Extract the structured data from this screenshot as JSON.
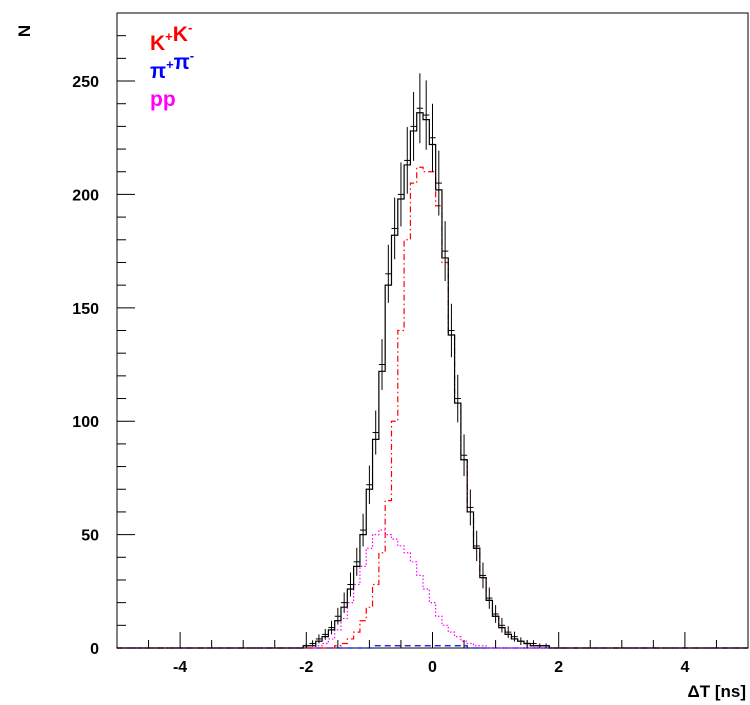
{
  "chart_data": {
    "type": "line",
    "xlabel": "ΔT [ns]",
    "ylabel": "N",
    "xlim": [
      -5,
      5
    ],
    "ylim": [
      0,
      280
    ],
    "x_ticks": [
      -4,
      -2,
      0,
      2,
      4
    ],
    "y_ticks": [
      0,
      50,
      100,
      150,
      200,
      250
    ],
    "grid": false,
    "legend_position": "top-left",
    "legend": [
      {
        "base1": "K",
        "sup1": "+",
        "base2": "K",
        "sup2": "-",
        "color": "#ff0000"
      },
      {
        "base1": "π",
        "sup1": "+",
        "base2": "π",
        "sup2": "-",
        "color": "#0000ff"
      },
      {
        "base1": "pp",
        "sup1": "",
        "base2": "",
        "sup2": "",
        "color": "#ff00ff"
      }
    ],
    "x": [
      -2.0,
      -1.9,
      -1.8,
      -1.7,
      -1.6,
      -1.5,
      -1.4,
      -1.3,
      -1.2,
      -1.1,
      -1.0,
      -0.9,
      -0.8,
      -0.7,
      -0.6,
      -0.5,
      -0.4,
      -0.3,
      -0.2,
      -0.1,
      0.0,
      0.1,
      0.2,
      0.3,
      0.4,
      0.5,
      0.6,
      0.7,
      0.8,
      0.9,
      1.0,
      1.1,
      1.2,
      1.3,
      1.4,
      1.5,
      1.6,
      1.7,
      1.8,
      1.9,
      2.0,
      2.1
    ],
    "series": [
      {
        "style": "data",
        "color": "#000000",
        "values": [
          1,
          2,
          4,
          6,
          9,
          14,
          20,
          28,
          38,
          52,
          72,
          95,
          125,
          165,
          185,
          200,
          215,
          230,
          238,
          235,
          225,
          205,
          175,
          140,
          110,
          85,
          62,
          45,
          32,
          22,
          15,
          10,
          7,
          5,
          3,
          2,
          2,
          1,
          1,
          0,
          0,
          0
        ],
        "errors": [
          1,
          1.4,
          2,
          2.4,
          3,
          3.7,
          4.5,
          5.3,
          6.2,
          7.2,
          8.5,
          9.7,
          11.2,
          12.8,
          13.6,
          14.1,
          14.7,
          15.2,
          15.4,
          15.3,
          15,
          14.3,
          13.2,
          11.8,
          10.5,
          9.2,
          7.9,
          6.7,
          5.7,
          4.7,
          3.9,
          3.2,
          2.6,
          2.2,
          1.7,
          1.4,
          1.4,
          1,
          1,
          0,
          0,
          0
        ]
      },
      {
        "style": "sim-total",
        "color": "#000000",
        "values": [
          1,
          1,
          3,
          5,
          8,
          12,
          18,
          26,
          36,
          50,
          70,
          92,
          122,
          160,
          182,
          198,
          213,
          228,
          236,
          233,
          222,
          202,
          172,
          138,
          108,
          83,
          60,
          44,
          31,
          21,
          14,
          9,
          6,
          4,
          3,
          2,
          1,
          1,
          1,
          0,
          0,
          0
        ]
      },
      {
        "style": "dash-dot",
        "color": "#ff0000",
        "values": [
          0,
          0,
          0,
          0,
          0,
          1,
          2,
          4,
          7,
          12,
          18,
          28,
          42,
          65,
          100,
          140,
          180,
          205,
          212,
          210,
          210,
          195,
          170,
          138,
          108,
          83,
          60,
          44,
          31,
          21,
          14,
          9,
          6,
          4,
          3,
          2,
          1,
          1,
          1,
          0,
          0,
          0
        ]
      },
      {
        "style": "dotted",
        "color": "#ff00ff",
        "values": [
          0,
          0,
          1,
          2,
          4,
          8,
          13,
          20,
          28,
          36,
          44,
          50,
          52,
          50,
          48,
          45,
          42,
          38,
          32,
          26,
          20,
          14,
          10,
          7,
          5,
          3,
          2,
          1,
          1,
          0,
          0,
          0,
          0,
          0,
          0,
          0,
          0,
          0,
          0,
          0,
          0,
          0
        ]
      },
      {
        "style": "dashed",
        "color": "#0000ff",
        "values": [
          0,
          0,
          0,
          0,
          0,
          0,
          0,
          0,
          0,
          0,
          0,
          1,
          1,
          1,
          1,
          1,
          1,
          1,
          1,
          1,
          1,
          1,
          1,
          1,
          1,
          1,
          0,
          0,
          0,
          0,
          0,
          0,
          0,
          0,
          0,
          0,
          0,
          0,
          0,
          0,
          0,
          0
        ]
      }
    ]
  }
}
